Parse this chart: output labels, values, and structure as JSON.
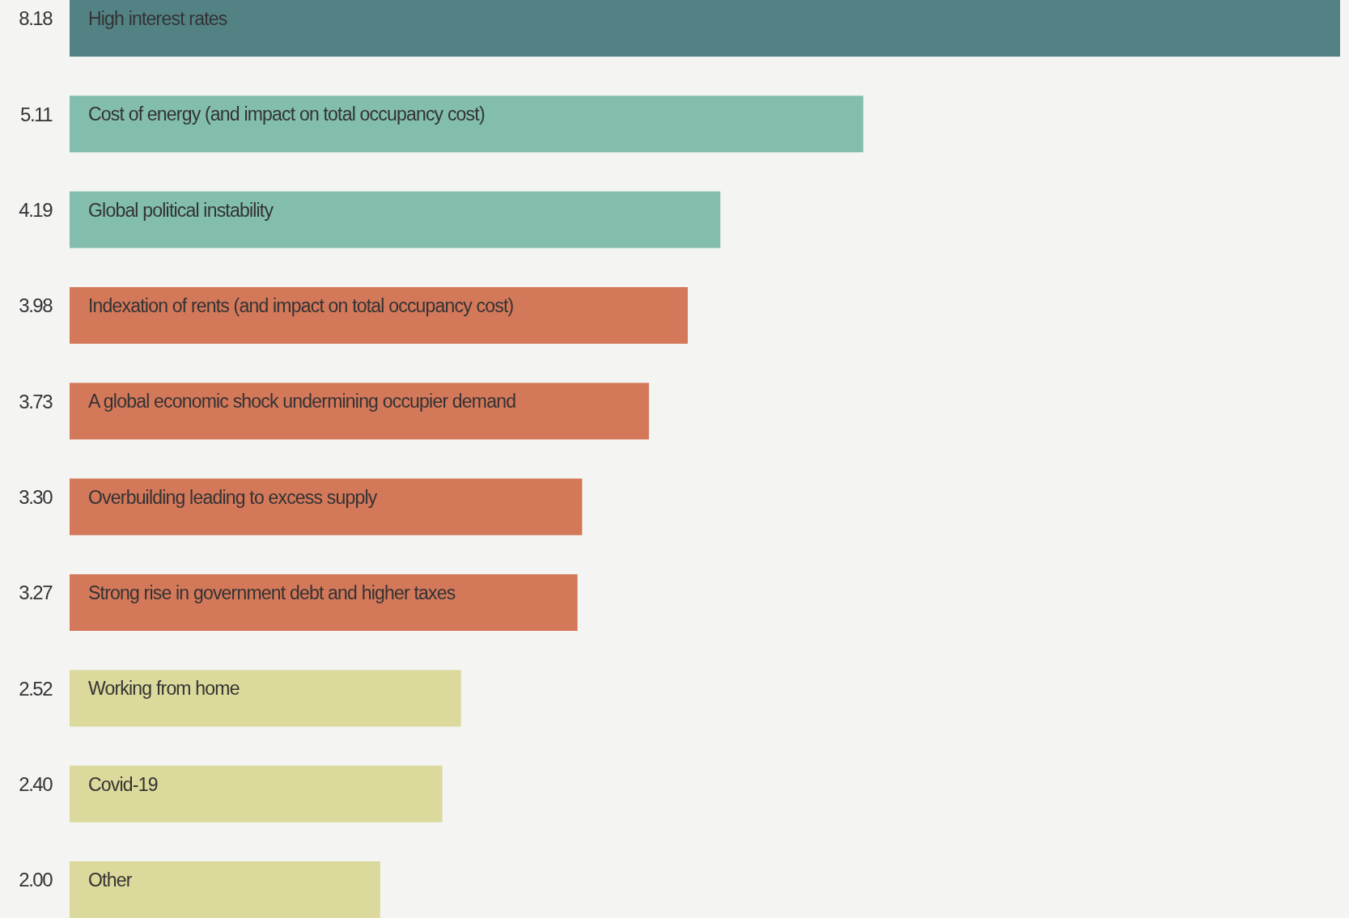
{
  "chart_data": {
    "type": "bar",
    "orientation": "horizontal",
    "categories": [
      "High interest rates",
      "Cost of energy (and impact on total occupancy cost)",
      "Global political instability",
      "Indexation of rents (and impact on total occupancy cost)",
      "A global economic shock undermining occupier demand",
      "Overbuilding leading to excess supply",
      "Strong rise in government debt and higher taxes",
      "Working from home",
      "Covid-19",
      "Other"
    ],
    "values": [
      8.18,
      5.11,
      4.19,
      3.98,
      3.73,
      3.3,
      3.27,
      2.52,
      2.4,
      2.0
    ],
    "value_labels": [
      "8.18",
      "5.11",
      "4.19",
      "3.98",
      "3.73",
      "3.30",
      "3.27",
      "2.52",
      "2.40",
      "2.00"
    ],
    "colors": [
      "#538285",
      "#82bdae",
      "#82bdae",
      "#d4785a",
      "#d4785a",
      "#d4785a",
      "#d4785a",
      "#dbd99b",
      "#dbd99b",
      "#dbd99b"
    ]
  }
}
